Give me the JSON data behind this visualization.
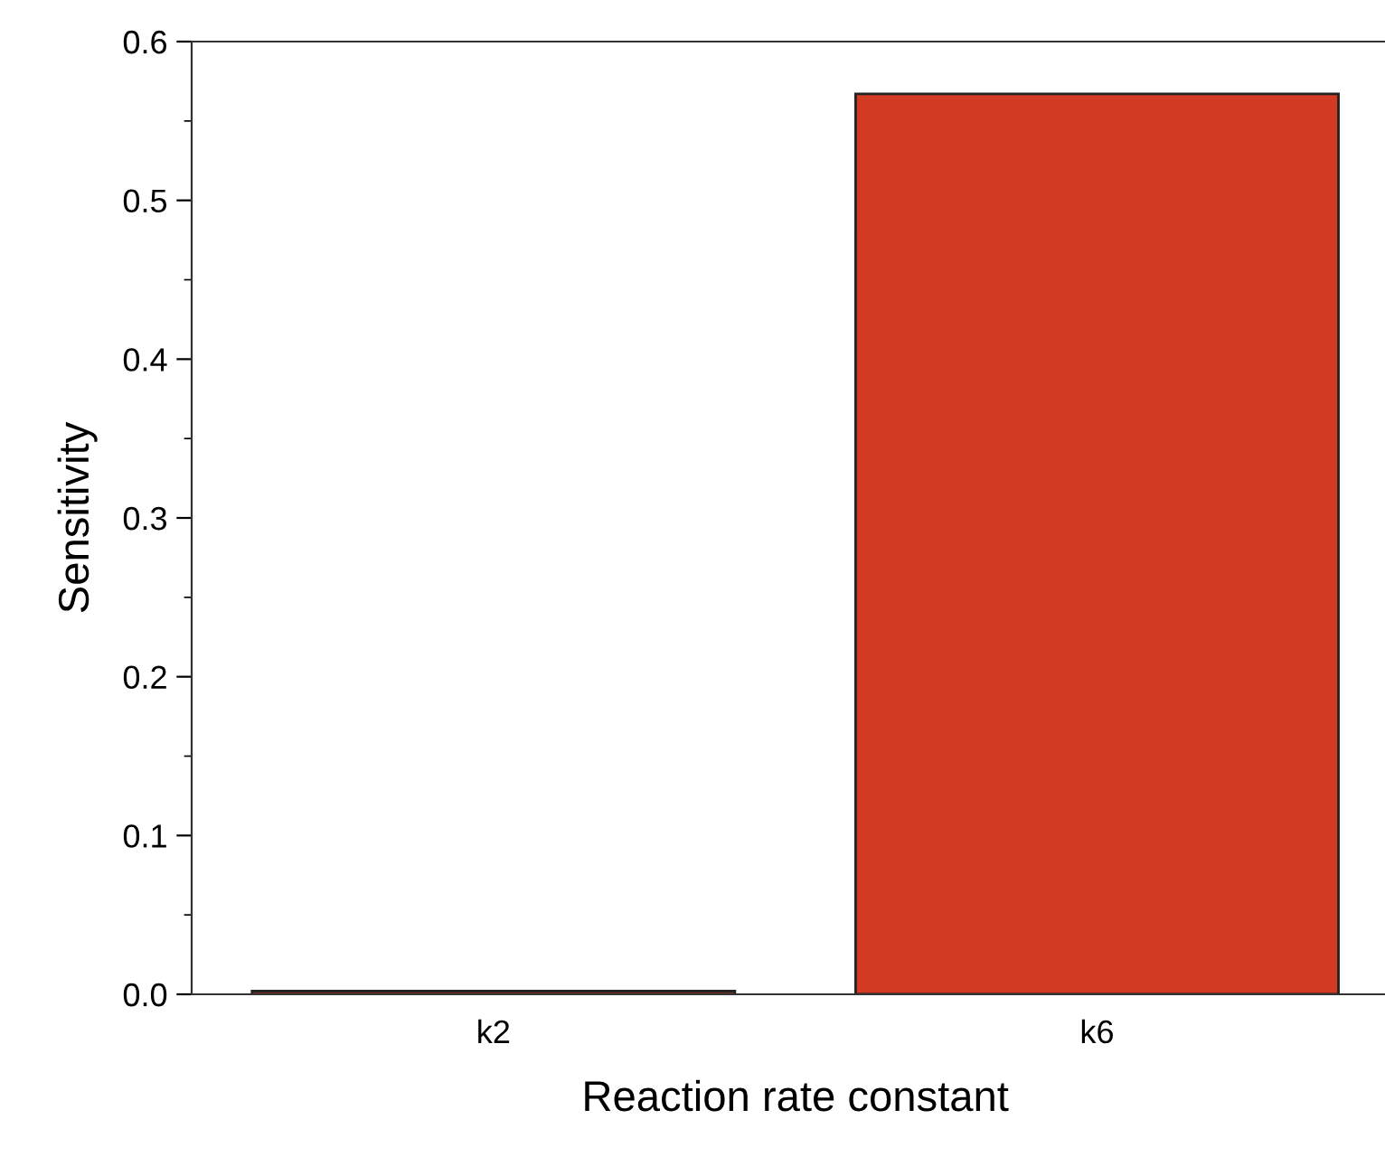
{
  "chart_data": {
    "type": "bar",
    "xlabel": "Reaction rate constant",
    "ylabel": "Sensitivity",
    "categories": [
      "k2",
      "k6"
    ],
    "values": [
      0.002,
      0.567
    ],
    "color": "#d23a22",
    "ylim": [
      0,
      0.6
    ],
    "yticks": [
      {
        "value": 0,
        "label": "0.0"
      },
      0.1,
      0.2,
      0.3,
      0.4,
      0.5,
      0.6
    ],
    "grid": false
  }
}
